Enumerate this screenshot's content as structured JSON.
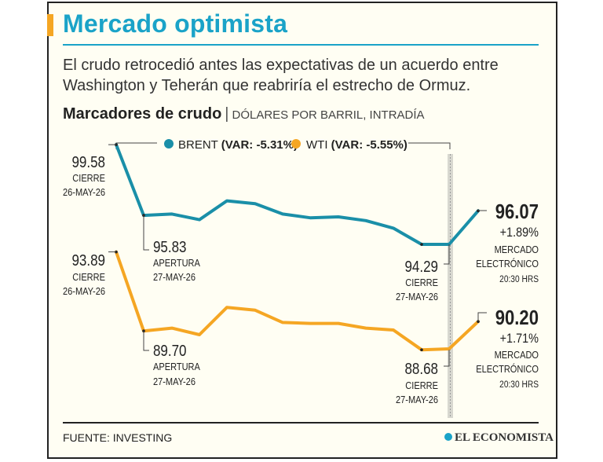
{
  "header": {
    "title": "Mercado optimista",
    "subtitle": "El crudo retrocedió antes las expectativas de un acuerdo entre Washington y Teherán que reabriría el estrecho de Ormuz.",
    "section_title": "Marcadores de crudo",
    "section_sep": "|",
    "section_unit": "DÓLARES POR BARRIL, INTRADÍA"
  },
  "chart_data": {
    "type": "line",
    "legend_placement": "top",
    "grid": false,
    "ylim": [
      86,
      101
    ],
    "series": [
      {
        "name": "BRENT",
        "legend_var": "(VAR: -5.31%)",
        "color": "#1a8fa8",
        "values": [
          99.58,
          95.83,
          95.9,
          95.6,
          96.6,
          96.45,
          95.9,
          95.7,
          95.75,
          95.55,
          95.15,
          94.29,
          94.29,
          96.07
        ]
      },
      {
        "name": "WTI",
        "legend_var": "(VAR: -5.55%)",
        "color": "#f5a623",
        "values": [
          93.89,
          89.7,
          89.85,
          89.5,
          90.95,
          90.8,
          90.15,
          90.1,
          90.1,
          89.85,
          89.75,
          88.7,
          88.75,
          90.2
        ]
      }
    ],
    "annotations": {
      "brent_close": {
        "value": "99.58",
        "label": "CIERRE",
        "date": "26-MAY-26"
      },
      "brent_open": {
        "value": "95.83",
        "label": "APERTURA",
        "date": "27-MAY-26"
      },
      "brent_close2": {
        "value": "94.29",
        "label": "CIERRE",
        "date": "27-MAY-26"
      },
      "brent_last": {
        "value": "96.07",
        "change": "+1.89%",
        "label1": "MERCADO",
        "label2": "ELECTRÓNICO",
        "time": "20:30 HRS"
      },
      "wti_close": {
        "value": "93.89",
        "label": "CIERRE",
        "date": "26-MAY-26"
      },
      "wti_open": {
        "value": "89.70",
        "label": "APERTURA",
        "date": "27-MAY-26"
      },
      "wti_close2": {
        "value": "88.68",
        "label": "CIERRE",
        "date": "27-MAY-26"
      },
      "wti_last": {
        "value": "90.20",
        "change": "+1.71%",
        "label1": "MERCADO",
        "label2": "ELECTRÓNICO",
        "time": "20:30 HRS"
      }
    }
  },
  "footer": {
    "source": "FUENTE: INVESTING",
    "brand": "EL ECONOMISTA"
  }
}
